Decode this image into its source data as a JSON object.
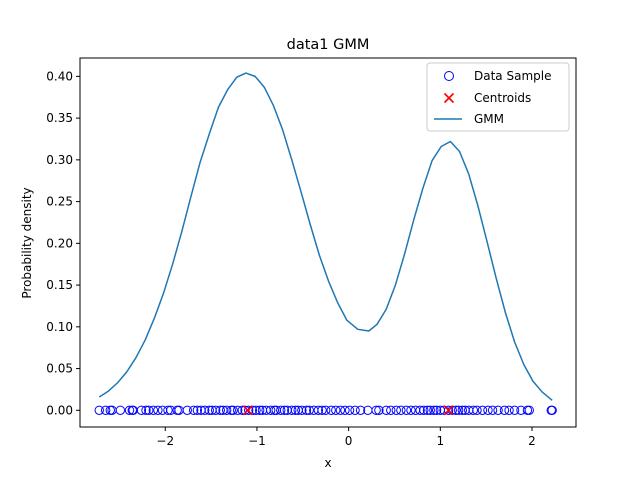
{
  "chart_data": {
    "type": "line",
    "title": "data1 GMM",
    "xlabel": "x",
    "ylabel": "Probability density",
    "xlim": [
      -2.93,
      2.48
    ],
    "ylim": [
      -0.02,
      0.422
    ],
    "xticks": [
      -2,
      -1,
      0,
      1,
      2
    ],
    "xtick_labels": [
      "−2",
      "−1",
      "0",
      "1",
      "2"
    ],
    "yticks": [
      0.0,
      0.05,
      0.1,
      0.15,
      0.2,
      0.25,
      0.3,
      0.35,
      0.4
    ],
    "ytick_labels": [
      "0.00",
      "0.05",
      "0.10",
      "0.15",
      "0.20",
      "0.25",
      "0.30",
      "0.35",
      "0.40"
    ],
    "grid": false,
    "legend_position": "top-right",
    "legend": [
      {
        "label": "Data Sample",
        "marker": "open-circle",
        "color": "#0000ff"
      },
      {
        "label": "Centroids",
        "marker": "x",
        "color": "#ff0000"
      },
      {
        "label": "GMM",
        "marker": "line",
        "color": "#1f77b4"
      }
    ],
    "series": [
      {
        "name": "GMM",
        "type": "line",
        "color": "#1f77b4",
        "x": [
          -2.72,
          -2.62,
          -2.52,
          -2.42,
          -2.32,
          -2.22,
          -2.12,
          -2.02,
          -1.92,
          -1.82,
          -1.72,
          -1.62,
          -1.52,
          -1.42,
          -1.32,
          -1.22,
          -1.12,
          -1.02,
          -0.92,
          -0.82,
          -0.72,
          -0.62,
          -0.52,
          -0.42,
          -0.32,
          -0.22,
          -0.12,
          -0.02,
          0.1,
          0.22,
          0.31,
          0.41,
          0.51,
          0.61,
          0.71,
          0.81,
          0.91,
          1.01,
          1.11,
          1.21,
          1.31,
          1.41,
          1.51,
          1.61,
          1.71,
          1.81,
          1.91,
          2.01,
          2.11,
          2.22
        ],
        "values": [
          0.016,
          0.023,
          0.033,
          0.046,
          0.063,
          0.084,
          0.11,
          0.14,
          0.175,
          0.214,
          0.256,
          0.297,
          0.331,
          0.363,
          0.384,
          0.399,
          0.404,
          0.4,
          0.387,
          0.365,
          0.336,
          0.3,
          0.262,
          0.223,
          0.186,
          0.155,
          0.129,
          0.108,
          0.097,
          0.095,
          0.103,
          0.121,
          0.15,
          0.187,
          0.228,
          0.266,
          0.299,
          0.316,
          0.322,
          0.31,
          0.283,
          0.245,
          0.202,
          0.158,
          0.117,
          0.082,
          0.055,
          0.035,
          0.022,
          0.012
        ]
      },
      {
        "name": "Data Sample",
        "type": "scatter",
        "color": "#0000ff",
        "x": [
          -2.72,
          -2.65,
          -2.6,
          -2.58,
          -2.49,
          -2.39,
          -2.36,
          -2.35,
          -2.26,
          -2.21,
          -2.18,
          -2.13,
          -2.08,
          -2.03,
          -1.97,
          -1.94,
          -1.87,
          -1.85,
          -1.76,
          -1.69,
          -1.65,
          -1.61,
          -1.57,
          -1.52,
          -1.49,
          -1.45,
          -1.4,
          -1.37,
          -1.33,
          -1.28,
          -1.26,
          -1.21,
          -1.16,
          -1.13,
          -1.09,
          -1.05,
          -1.01,
          -0.97,
          -0.94,
          -0.9,
          -0.85,
          -0.81,
          -0.79,
          -0.74,
          -0.7,
          -0.67,
          -0.62,
          -0.58,
          -0.55,
          -0.51,
          -0.46,
          -0.43,
          -0.38,
          -0.33,
          -0.29,
          -0.25,
          -0.19,
          -0.14,
          -0.09,
          -0.04,
          0.01,
          0.07,
          0.13,
          0.21,
          0.3,
          0.33,
          0.41,
          0.46,
          0.52,
          0.57,
          0.63,
          0.68,
          0.73,
          0.78,
          0.82,
          0.86,
          0.89,
          0.93,
          0.96,
          1.0,
          1.04,
          1.09,
          1.13,
          1.17,
          1.2,
          1.24,
          1.27,
          1.31,
          1.36,
          1.4,
          1.46,
          1.52,
          1.57,
          1.63,
          1.7,
          1.75,
          1.81,
          1.88,
          1.95,
          1.97,
          2.21,
          2.22
        ],
        "values": [
          0,
          0,
          0,
          0,
          0,
          0,
          0,
          0,
          0,
          0,
          0,
          0,
          0,
          0,
          0,
          0,
          0,
          0,
          0,
          0,
          0,
          0,
          0,
          0,
          0,
          0,
          0,
          0,
          0,
          0,
          0,
          0,
          0,
          0,
          0,
          0,
          0,
          0,
          0,
          0,
          0,
          0,
          0,
          0,
          0,
          0,
          0,
          0,
          0,
          0,
          0,
          0,
          0,
          0,
          0,
          0,
          0,
          0,
          0,
          0,
          0,
          0,
          0,
          0,
          0,
          0,
          0,
          0,
          0,
          0,
          0,
          0,
          0,
          0,
          0,
          0,
          0,
          0,
          0,
          0,
          0,
          0,
          0,
          0,
          0,
          0,
          0,
          0,
          0,
          0,
          0,
          0,
          0,
          0,
          0,
          0,
          0,
          0,
          0,
          0,
          0,
          0
        ]
      },
      {
        "name": "Centroids",
        "type": "scatter",
        "color": "#ff0000",
        "x": [
          -1.1,
          1.09
        ],
        "values": [
          0,
          0
        ]
      }
    ]
  }
}
